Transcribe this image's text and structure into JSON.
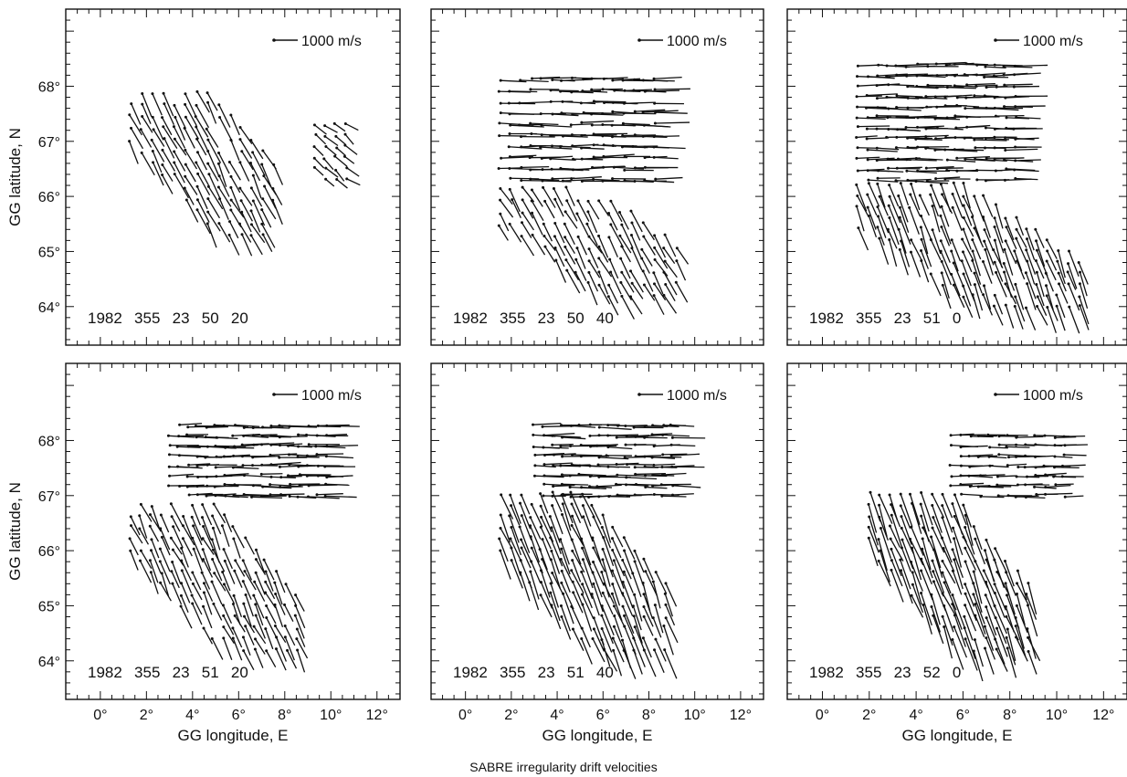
{
  "figure": {
    "caption": "SABRE irregularity drift velocities"
  },
  "chart_data": {
    "type": "quiver",
    "grid": false,
    "x_axis": {
      "label": "GG longitude, E",
      "range": [
        -1.5,
        13
      ],
      "tick_labels": [
        "0°",
        "2°",
        "4°",
        "6°",
        "8°",
        "10°",
        "12°"
      ],
      "tick_values": [
        0,
        2,
        4,
        6,
        8,
        10,
        12
      ]
    },
    "y_axis": {
      "label": "GG latitude, N",
      "range": [
        63.3,
        69.4
      ],
      "tick_labels": [
        "64°",
        "65°",
        "66°",
        "67°",
        "68°"
      ],
      "tick_values": [
        64,
        65,
        66,
        67,
        68
      ]
    },
    "reference_vector": {
      "label": "1000 m/s",
      "magnitude_ms": 1000
    },
    "panels": [
      {
        "id": "p1",
        "stamp": [
          "1982",
          "355",
          "23",
          "50",
          "20"
        ],
        "fields": [
          {
            "lon": [
              1.3,
              8.0
            ],
            "lat": [
              65.3,
              68.1
            ],
            "dlon": 0.55,
            "dlat": -0.28,
            "rotate": -0.62,
            "shape": "swath",
            "step": 0.48
          },
          {
            "lon": [
              9.3,
              11.0
            ],
            "lat": [
              66.3,
              67.5
            ],
            "dlon": 0.45,
            "dlat": -0.15,
            "rotate": 0.0,
            "shape": "box",
            "step": 0.45
          }
        ]
      },
      {
        "id": "p2",
        "stamp": [
          "1982",
          "355",
          "23",
          "50",
          "40"
        ],
        "fields": [
          {
            "lon": [
              1.5,
              8.5
            ],
            "lat": [
              66.3,
              68.3
            ],
            "dlon": 1.2,
            "dlat": 0.0,
            "rotate": 0.0,
            "shape": "rows",
            "step": 0.45
          },
          {
            "lon": [
              1.5,
              9.5
            ],
            "lat": [
              64.2,
              66.3
            ],
            "dlon": 0.45,
            "dlat": -0.3,
            "rotate": -0.2,
            "shape": "swath",
            "step": 0.48
          }
        ]
      },
      {
        "id": "p3",
        "stamp": [
          "1982",
          "355",
          "23",
          "51",
          "0"
        ],
        "fields": [
          {
            "lon": [
              1.5,
              8.5
            ],
            "lat": [
              66.3,
              68.4
            ],
            "dlon": 1.1,
            "dlat": 0.0,
            "rotate": 0.0,
            "shape": "rows",
            "step": 0.42
          },
          {
            "lon": [
              1.5,
              11.0
            ],
            "lat": [
              64.0,
              66.3
            ],
            "dlon": 0.4,
            "dlat": -0.35,
            "rotate": -0.5,
            "shape": "swath",
            "step": 0.45
          }
        ]
      },
      {
        "id": "p4",
        "stamp": [
          "1982",
          "355",
          "23",
          "51",
          "20"
        ],
        "fields": [
          {
            "lon": [
              3.0,
              10.0
            ],
            "lat": [
              67.0,
              68.4
            ],
            "dlon": 1.1,
            "dlat": 0.0,
            "rotate": 0.0,
            "shape": "rows",
            "step": 0.4
          },
          {
            "lon": [
              1.3,
              8.5
            ],
            "lat": [
              64.2,
              67.0
            ],
            "dlon": 0.45,
            "dlat": -0.28,
            "rotate": -0.6,
            "shape": "swath",
            "step": 0.45
          }
        ]
      },
      {
        "id": "p5",
        "stamp": [
          "1982",
          "355",
          "23",
          "51",
          "40"
        ],
        "fields": [
          {
            "lon": [
              3.0,
              9.0
            ],
            "lat": [
              67.0,
              68.4
            ],
            "dlon": 1.1,
            "dlat": 0.0,
            "rotate": 0.0,
            "shape": "rows",
            "step": 0.4
          },
          {
            "lon": [
              1.5,
              9.0
            ],
            "lat": [
              64.2,
              67.2
            ],
            "dlon": 0.5,
            "dlat": -0.35,
            "rotate": -0.62,
            "shape": "swath",
            "step": 0.45
          }
        ]
      },
      {
        "id": "p6",
        "stamp": [
          "1982",
          "355",
          "23",
          "52",
          "0"
        ],
        "fields": [
          {
            "lon": [
              5.5,
              10.5
            ],
            "lat": [
              67.0,
              68.2
            ],
            "dlon": 0.9,
            "dlat": 0.0,
            "rotate": 0.0,
            "shape": "rows",
            "step": 0.4
          },
          {
            "lon": [
              2.0,
              9.0
            ],
            "lat": [
              64.2,
              67.2
            ],
            "dlon": 0.5,
            "dlat": -0.4,
            "rotate": -0.62,
            "shape": "swath",
            "step": 0.45
          }
        ]
      }
    ]
  }
}
